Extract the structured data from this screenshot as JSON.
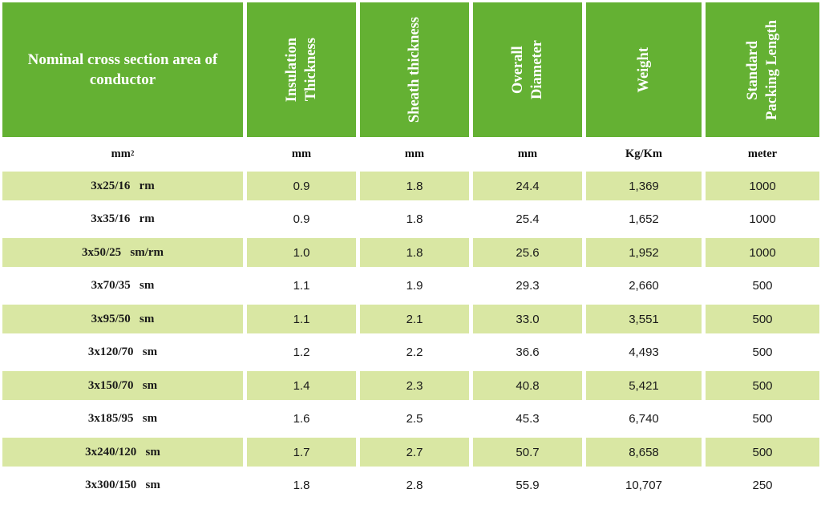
{
  "headers": [
    {
      "lines": [
        "Nominal cross section area of",
        "conductor"
      ],
      "vertical": false
    },
    {
      "lines": [
        "Insulation",
        "Thickness"
      ],
      "vertical": true
    },
    {
      "lines": [
        "Sheath thickness"
      ],
      "vertical": true
    },
    {
      "lines": [
        "Overall",
        "Diameter"
      ],
      "vertical": true
    },
    {
      "lines": [
        "Weight"
      ],
      "vertical": true
    },
    {
      "lines": [
        "Standard",
        "Packing Length"
      ],
      "vertical": true
    }
  ],
  "units": {
    "size_base": "mm",
    "size_sup": "2",
    "insulation": "mm",
    "sheath": "mm",
    "diameter": "mm",
    "weight": "Kg/Km",
    "length": "meter"
  },
  "rows": [
    {
      "size": "3x25/16",
      "type": "rm",
      "insulation": "0.9",
      "sheath": "1.8",
      "diameter": "24.4",
      "weight": "1,369",
      "length": "1000"
    },
    {
      "size": "3x35/16",
      "type": "rm",
      "insulation": "0.9",
      "sheath": "1.8",
      "diameter": "25.4",
      "weight": "1,652",
      "length": "1000"
    },
    {
      "size": "3x50/25",
      "type": "sm/rm",
      "insulation": "1.0",
      "sheath": "1.8",
      "diameter": "25.6",
      "weight": "1,952",
      "length": "1000"
    },
    {
      "size": "3x70/35",
      "type": "sm",
      "insulation": "1.1",
      "sheath": "1.9",
      "diameter": "29.3",
      "weight": "2,660",
      "length": "500"
    },
    {
      "size": "3x95/50",
      "type": "sm",
      "insulation": "1.1",
      "sheath": "2.1",
      "diameter": "33.0",
      "weight": "3,551",
      "length": "500"
    },
    {
      "size": "3x120/70",
      "type": "sm",
      "insulation": "1.2",
      "sheath": "2.2",
      "diameter": "36.6",
      "weight": "4,493",
      "length": "500"
    },
    {
      "size": "3x150/70",
      "type": "sm",
      "insulation": "1.4",
      "sheath": "2.3",
      "diameter": "40.8",
      "weight": "5,421",
      "length": "500"
    },
    {
      "size": "3x185/95",
      "type": "sm",
      "insulation": "1.6",
      "sheath": "2.5",
      "diameter": "45.3",
      "weight": "6,740",
      "length": "500"
    },
    {
      "size": "3x240/120",
      "type": "sm",
      "insulation": "1.7",
      "sheath": "2.7",
      "diameter": "50.7",
      "weight": "8,658",
      "length": "500"
    },
    {
      "size": "3x300/150",
      "type": "sm",
      "insulation": "1.8",
      "sheath": "2.8",
      "diameter": "55.9",
      "weight": "10,707",
      "length": "250"
    }
  ],
  "colors": {
    "header_bg": "#64b133",
    "stripe_bg": "#d9e7a3"
  }
}
